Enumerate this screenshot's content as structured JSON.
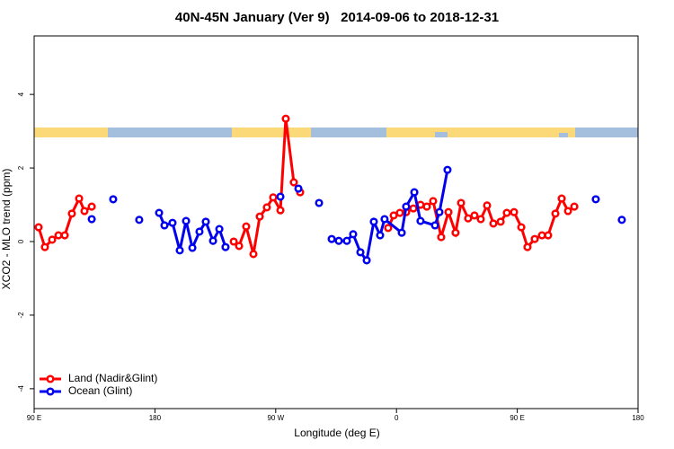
{
  "chart_data": {
    "type": "line",
    "title": "40N-45N January (Ver 9)   2014-09-06 to 2018-12-31",
    "x_label": "Longitude (deg E)",
    "y_label": "XCO2 - MLO trend (ppm)",
    "xlim": [
      90,
      540
    ],
    "xticks": [
      {
        "value": 90,
        "label": "90 E"
      },
      {
        "value": 180,
        "label": "180"
      },
      {
        "value": 270,
        "label": "90 W"
      },
      {
        "value": 360,
        "label": "0"
      },
      {
        "value": 450,
        "label": "90 E"
      },
      {
        "value": 540,
        "label": "180"
      }
    ],
    "ylim": [
      -4.54,
      5.59
    ],
    "yticks": [
      -4,
      -2,
      0,
      2,
      4
    ],
    "legend": "bottom-left",
    "series": [
      {
        "name": "Land (Nadir&Glint)",
        "color": "#ff0000",
        "x": [
          93.3,
          98.0,
          103.4,
          108.1,
          112.8,
          118.1,
          123.5,
          127.5,
          132.9,
          null,
          238.7,
          242.7,
          248.0,
          253.4,
          258.1,
          263.4,
          268.1,
          273.5,
          277.5,
          283.5,
          288.2,
          null,
          353.8,
          357.9,
          362.5,
          367.2,
          372.6,
          377.9,
          382.6,
          387.3,
          393.3,
          398.7,
          404.0,
          408.1,
          413.4,
          418.1,
          422.8,
          427.5,
          432.2,
          437.6,
          442.2,
          447.6,
          453.0,
          457.6,
          463.0,
          468.4,
          473.0,
          478.4,
          483.1,
          487.8,
          492.5
        ],
        "values": [
          0.39,
          -0.15,
          0.05,
          0.17,
          0.17,
          0.76,
          1.17,
          0.83,
          0.95,
          null,
          0.0,
          -0.12,
          0.41,
          -0.34,
          0.68,
          0.93,
          1.2,
          0.85,
          3.34,
          1.61,
          1.34,
          null,
          0.37,
          0.71,
          0.78,
          0.8,
          0.9,
          1.0,
          0.95,
          1.1,
          0.12,
          0.8,
          0.24,
          1.05,
          0.63,
          0.71,
          0.61,
          0.98,
          0.49,
          0.54,
          0.78,
          0.8,
          0.39,
          -0.15,
          0.07,
          0.17,
          0.17,
          0.76,
          1.17,
          0.83,
          0.95
        ]
      },
      {
        "name": "Ocean (Glint)",
        "color": "#0000ee",
        "x": [
          132.9,
          null,
          148.9,
          null,
          168.3,
          null,
          183.1,
          187.1,
          193.1,
          198.5,
          203.2,
          207.9,
          213.2,
          217.9,
          223.3,
          228.0,
          232.6,
          null,
          273.5,
          null,
          286.9,
          null,
          302.3,
          null,
          311.7,
          317.0,
          323.0,
          327.7,
          333.1,
          337.8,
          343.1,
          347.8,
          351.1,
          363.9,
          367.2,
          373.3,
          377.9,
          388.7,
          392.0,
          398.0,
          null,
          508.5,
          null,
          527.9
        ],
        "values": [
          0.61,
          null,
          1.15,
          null,
          0.59,
          null,
          0.78,
          0.44,
          0.51,
          -0.24,
          0.56,
          -0.17,
          0.27,
          0.54,
          0.02,
          0.34,
          -0.15,
          null,
          1.22,
          null,
          1.44,
          null,
          1.05,
          null,
          0.07,
          0.02,
          0.02,
          0.2,
          -0.29,
          -0.51,
          0.54,
          0.17,
          0.61,
          0.24,
          0.95,
          1.34,
          0.56,
          0.44,
          0.8,
          1.95,
          null,
          1.15,
          null,
          0.59
        ]
      }
    ]
  }
}
